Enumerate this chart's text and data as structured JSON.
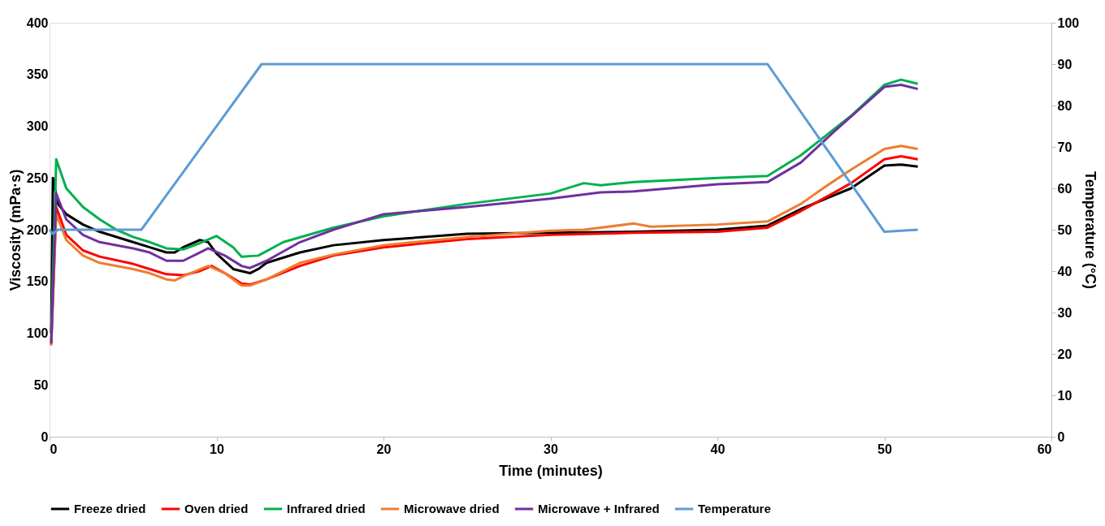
{
  "chart_data": {
    "type": "line",
    "xlabel": "Time (minutes)",
    "ylabel": "Viscosity (mPa·s)",
    "y2label": "Temperature (°C)",
    "xlim": [
      0,
      60
    ],
    "xticks": [
      0,
      10,
      20,
      30,
      40,
      50,
      60
    ],
    "ylim": [
      0,
      400
    ],
    "yticks": [
      0,
      50,
      100,
      150,
      200,
      250,
      300,
      350,
      400
    ],
    "y2lim": [
      0,
      100
    ],
    "y2ticks": [
      0,
      10,
      20,
      30,
      40,
      50,
      60,
      70,
      80,
      90,
      100
    ],
    "grid": false,
    "legend": "bottom",
    "marker": "none",
    "line_style": "solid",
    "series": [
      {
        "name": "Freeze dried",
        "color": "#000000",
        "x": [
          0.1,
          0.2,
          0.5,
          1,
          2,
          3,
          5,
          6,
          7,
          7.5,
          8,
          9,
          9.5,
          10,
          11,
          12,
          12.5,
          13,
          15,
          17,
          20,
          25,
          30,
          35,
          40,
          43,
          45,
          48,
          50,
          51,
          52
        ],
        "values": [
          100,
          250,
          225,
          215,
          205,
          198,
          188,
          183,
          178,
          178,
          183,
          190,
          188,
          177,
          162,
          158,
          162,
          168,
          178,
          185,
          190,
          196,
          197,
          198,
          200,
          204,
          220,
          240,
          262,
          263,
          261
        ]
      },
      {
        "name": "Oven dried",
        "color": "#ff0000",
        "x": [
          0.1,
          0.4,
          1,
          2,
          3,
          5,
          6,
          7,
          8,
          9,
          9.7,
          10.5,
          11.5,
          12,
          13,
          15,
          17,
          20,
          25,
          30,
          35,
          40,
          43,
          45,
          48,
          50,
          51,
          52
        ],
        "values": [
          90,
          222,
          195,
          180,
          174,
          167,
          162,
          157,
          156,
          160,
          165,
          158,
          148,
          147,
          152,
          165,
          175,
          183,
          191,
          195,
          197,
          198,
          202,
          218,
          245,
          268,
          271,
          268
        ]
      },
      {
        "name": "Infrared dried",
        "color": "#00b050",
        "x": [
          0.1,
          0.4,
          1,
          2,
          3,
          4,
          5,
          6,
          7,
          8,
          9,
          10,
          11,
          11.5,
          12.5,
          14,
          17,
          20,
          25,
          30,
          32,
          33,
          35,
          40,
          43,
          45,
          48,
          50,
          51,
          52
        ],
        "values": [
          100,
          268,
          240,
          222,
          210,
          200,
          193,
          188,
          182,
          181,
          187,
          194,
          183,
          174,
          175,
          188,
          202,
          213,
          225,
          235,
          245,
          243,
          246,
          250,
          252,
          272,
          310,
          340,
          345,
          341
        ]
      },
      {
        "name": "Microwave dried",
        "color": "#ed7d31",
        "x": [
          0.1,
          0.4,
          1,
          2,
          3,
          5,
          6,
          7,
          7.5,
          8,
          9.5,
          10.5,
          11.5,
          12,
          13,
          15,
          17,
          20,
          25,
          30,
          32,
          35,
          36,
          40,
          43,
          45,
          46.5,
          48,
          50,
          51,
          52
        ],
        "values": [
          88,
          215,
          190,
          175,
          168,
          162,
          158,
          152,
          151,
          155,
          165,
          158,
          146,
          146,
          152,
          168,
          176,
          185,
          193,
          199,
          200,
          206,
          203,
          205,
          208,
          225,
          242,
          258,
          278,
          281,
          278
        ]
      },
      {
        "name": "Microwave + Infrared",
        "color": "#7030a0",
        "x": [
          0.1,
          0.4,
          1,
          2,
          3,
          5,
          6,
          7,
          8,
          9,
          9.5,
          10.5,
          11.5,
          12,
          13,
          15,
          17,
          20,
          25,
          30,
          33,
          35,
          40,
          43,
          45,
          47,
          50,
          51,
          52
        ],
        "values": [
          90,
          235,
          210,
          195,
          188,
          182,
          178,
          170,
          170,
          178,
          182,
          175,
          165,
          163,
          170,
          188,
          200,
          215,
          222,
          230,
          236,
          237,
          244,
          246,
          265,
          295,
          338,
          340,
          336
        ]
      },
      {
        "name": "Temperature",
        "color": "#5b9bd5",
        "axis": "y2",
        "x": [
          0,
          0.2,
          0.5,
          5.5,
          12.7,
          43,
          50,
          52
        ],
        "values": [
          50,
          49,
          50,
          50,
          90,
          90,
          49.5,
          50
        ]
      }
    ]
  }
}
